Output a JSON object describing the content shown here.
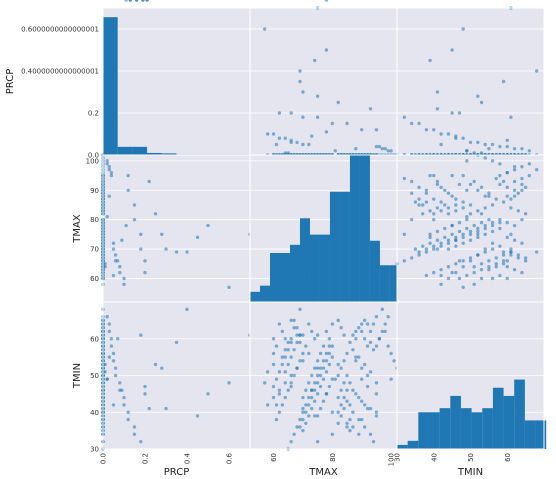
{
  "chart_data": {
    "type": "scatter",
    "title": "",
    "variables": [
      "PRCP",
      "TMAX",
      "TMIN"
    ],
    "ranges": {
      "PRCP": [
        0.0,
        0.7
      ],
      "TMAX": [
        52,
        102
      ],
      "TMIN": [
        30,
        70
      ]
    },
    "grid": true,
    "background": "#e5e5ef",
    "colors": {
      "bar": "#1f77b4",
      "point": "#1f77b4"
    },
    "y_tick_labels": {
      "PRCP": [
        "0.0",
        "0.2",
        "0.4000000000000001",
        "0.6000000000000001"
      ],
      "TMAX": [
        "60",
        "70",
        "80",
        "90",
        "100"
      ],
      "TMIN": [
        "30",
        "40",
        "50",
        "60"
      ]
    },
    "x_tick_labels": {
      "PRCP": [
        "0.0",
        "0.2",
        "0.4",
        "0.6"
      ],
      "TMAX": [
        "60",
        "80",
        "100"
      ],
      "TMIN": [
        "30",
        "40",
        "50",
        "60"
      ]
    },
    "hist": {
      "PRCP": {
        "bin_edges": [
          0.0,
          0.07,
          0.14,
          0.21,
          0.28,
          0.35,
          0.42,
          0.49,
          0.56,
          0.63,
          0.7
        ],
        "density": [
          0.675,
          0.04,
          0.04,
          0.01,
          0.008,
          0.003,
          0.003,
          0.003,
          0.003,
          0.003
        ]
      },
      "TMAX": {
        "bin_edges": [
          52,
          55.4,
          58.8,
          62.2,
          65.6,
          69,
          72.4,
          75.8,
          79.2,
          82.6,
          86,
          89.4,
          92.8,
          96.2,
          99.6,
          102
        ],
        "density": [
          0.05,
          0.08,
          0.24,
          0.24,
          0.28,
          0.41,
          0.33,
          0.33,
          0.54,
          0.54,
          0.72,
          0.72,
          0.3,
          0.18,
          0.18
        ]
      },
      "TMIN": {
        "bin_edges": [
          30,
          32.9,
          35.8,
          38.7,
          41.6,
          44.5,
          47.4,
          50.3,
          53.2,
          56.1,
          59,
          61.9,
          64.8,
          67.7,
          70.6
        ],
        "density": [
          0.02,
          0.04,
          0.18,
          0.18,
          0.2,
          0.26,
          0.2,
          0.18,
          0.2,
          0.3,
          0.26,
          0.34,
          0.14,
          0.14
        ]
      }
    },
    "points": {
      "PRCP": [
        0,
        0,
        0,
        0,
        0,
        0,
        0,
        0,
        0,
        0,
        0,
        0,
        0,
        0,
        0,
        0,
        0,
        0,
        0,
        0,
        0,
        0,
        0,
        0,
        0,
        0,
        0,
        0,
        0,
        0,
        0,
        0,
        0,
        0,
        0,
        0,
        0,
        0,
        0,
        0,
        0,
        0,
        0,
        0,
        0,
        0,
        0,
        0,
        0,
        0,
        0,
        0,
        0,
        0,
        0,
        0,
        0,
        0,
        0,
        0,
        0,
        0,
        0,
        0,
        0,
        0,
        0,
        0,
        0,
        0,
        0,
        0,
        0,
        0,
        0,
        0,
        0,
        0,
        0,
        0,
        0,
        0,
        0,
        0,
        0,
        0,
        0,
        0,
        0,
        0,
        0,
        0,
        0,
        0,
        0,
        0,
        0,
        0,
        0,
        0,
        0,
        0,
        0,
        0,
        0,
        0,
        0,
        0,
        0,
        0,
        0,
        0,
        0,
        0,
        0,
        0,
        0,
        0,
        0,
        0,
        0,
        0,
        0,
        0,
        0,
        0,
        0,
        0,
        0,
        0,
        0,
        0,
        0,
        0,
        0,
        0,
        0,
        0,
        0,
        0,
        0,
        0,
        0,
        0,
        0,
        0,
        0,
        0,
        0,
        0,
        0,
        0,
        0,
        0,
        0,
        0,
        0,
        0,
        0,
        0,
        0,
        0,
        0,
        0,
        0,
        0,
        0,
        0,
        0,
        0,
        0.01,
        0.01,
        0.02,
        0.02,
        0.03,
        0.03,
        0.04,
        0.04,
        0.05,
        0.05,
        0.06,
        0.06,
        0.08,
        0.08,
        0.1,
        0.1,
        0.12,
        0.12,
        0.15,
        0.15,
        0.18,
        0.18,
        0.2,
        0.2,
        0.22,
        0.25,
        0.28,
        0.3,
        0.35,
        0.4,
        0.45,
        0.5,
        0.6,
        0.7,
        0.02,
        0.03,
        0.05,
        0.07,
        0.09,
        0.11,
        0.13,
        0.16,
        0.19,
        0.21
      ],
      "TMAX": [
        88,
        90,
        92,
        95,
        97,
        99,
        100,
        101,
        102,
        85,
        84,
        83,
        82,
        86,
        87,
        89,
        91,
        93,
        94,
        96,
        98,
        80,
        79,
        78,
        77,
        76,
        75,
        74,
        73,
        72,
        71,
        70,
        69,
        68,
        67,
        66,
        65,
        64,
        63,
        62,
        61,
        60,
        88,
        90,
        92,
        95,
        85,
        84,
        83,
        82,
        86,
        87,
        89,
        91,
        93,
        94,
        80,
        79,
        78,
        77,
        76,
        75,
        74,
        73,
        72,
        71,
        70,
        69,
        68,
        67,
        66,
        65,
        64,
        63,
        60,
        58,
        90,
        92,
        95,
        85,
        84,
        83,
        82,
        86,
        87,
        89,
        91,
        93,
        94,
        80,
        79,
        78,
        77,
        76,
        75,
        74,
        73,
        72,
        71,
        70,
        69,
        68,
        67,
        66,
        65,
        64,
        63,
        62,
        61,
        60,
        88,
        90,
        92,
        95,
        85,
        84,
        83,
        82,
        86,
        87,
        89,
        91,
        93,
        80,
        79,
        78,
        77,
        76,
        75,
        74,
        73,
        72,
        71,
        70,
        69,
        68,
        67,
        66,
        65,
        64,
        63,
        62,
        61,
        60,
        88,
        90,
        92,
        85,
        84,
        83,
        82,
        86,
        87,
        89,
        91,
        80,
        79,
        78,
        77,
        76,
        75,
        74,
        73,
        72,
        71,
        70,
        69,
        68,
        67,
        66,
        65,
        64,
        100,
        99,
        98,
        97,
        96,
        95,
        72,
        70,
        68,
        66,
        64,
        62,
        60,
        58,
        95,
        90,
        85,
        80,
        75,
        70,
        66,
        62,
        93,
        82,
        75,
        70,
        69,
        69,
        74,
        78,
        57,
        75,
        81,
        88,
        61,
        66,
        73,
        78
      ],
      "TMIN": [
        60,
        62,
        64,
        66,
        68,
        58,
        56,
        54,
        52,
        50,
        48,
        46,
        44,
        42,
        40,
        38,
        36,
        34,
        32,
        60,
        62,
        64,
        58,
        56,
        54,
        52,
        50,
        48,
        46,
        44,
        42,
        40,
        38,
        36,
        34,
        32,
        30,
        60,
        62,
        64,
        58,
        56,
        54,
        52,
        50,
        48,
        46,
        44,
        42,
        40,
        38,
        36,
        34,
        60,
        62,
        64,
        58,
        56,
        54,
        52,
        50,
        48,
        46,
        44,
        42,
        40,
        38,
        36,
        61,
        63,
        65,
        59,
        57,
        55,
        53,
        51,
        49,
        47,
        45,
        43,
        41,
        39,
        37,
        35,
        61,
        63,
        65,
        59,
        57,
        55,
        53,
        51,
        49,
        47,
        45,
        43,
        41,
        39,
        37,
        35,
        61,
        63,
        65,
        59,
        57,
        55,
        53,
        51,
        49,
        47,
        45,
        43,
        41,
        39,
        37,
        61,
        63,
        65,
        59,
        57,
        55,
        53,
        51,
        49,
        47,
        45,
        43,
        41,
        39,
        60,
        62,
        64,
        58,
        56,
        54,
        52,
        50,
        48,
        46,
        44,
        42,
        40,
        38,
        60,
        62,
        64,
        58,
        56,
        54,
        52,
        50,
        48,
        46,
        44,
        42,
        40,
        60,
        62,
        58,
        56,
        54,
        52,
        50,
        48,
        46,
        44,
        61,
        59,
        57,
        55,
        53,
        51,
        49,
        66,
        64,
        62,
        60,
        58,
        56,
        54,
        52,
        50,
        48,
        46,
        44,
        42,
        40,
        38,
        36,
        34,
        32,
        61,
        47,
        45,
        41,
        53,
        52,
        41,
        59,
        68,
        39,
        45,
        48,
        61,
        49,
        55,
        42,
        60,
        46
      ]
    }
  }
}
